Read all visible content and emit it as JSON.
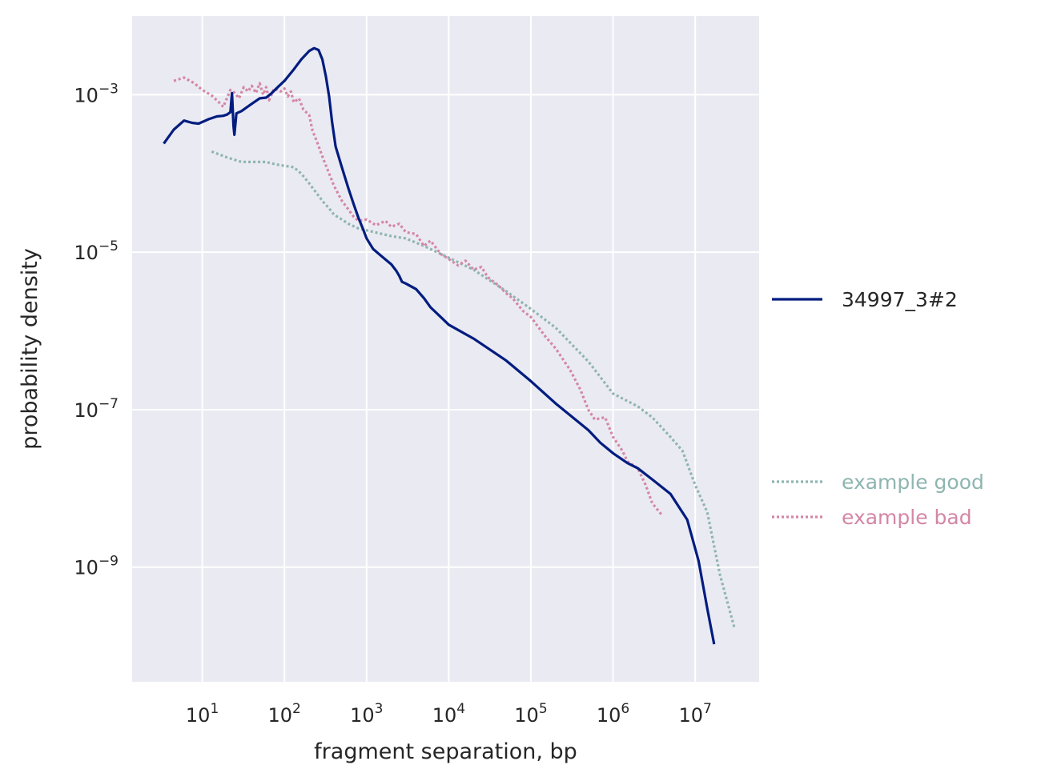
{
  "chart_data": {
    "type": "line",
    "title": "",
    "xlabel": "fragment separation, bp",
    "ylabel": "probability density",
    "xscale": "log",
    "yscale": "log",
    "xlim": [
      1.4,
      60000000
    ],
    "ylim": [
      3.5e-11,
      0.01
    ],
    "grid": true,
    "legend": "right, outside plot",
    "x_ticks": [
      {
        "base": "10",
        "exp": "1",
        "value": 10
      },
      {
        "base": "10",
        "exp": "2",
        "value": 100
      },
      {
        "base": "10",
        "exp": "3",
        "value": 1000
      },
      {
        "base": "10",
        "exp": "4",
        "value": 10000
      },
      {
        "base": "10",
        "exp": "5",
        "value": 100000
      },
      {
        "base": "10",
        "exp": "6",
        "value": 1000000
      },
      {
        "base": "10",
        "exp": "7",
        "value": 10000000
      }
    ],
    "y_ticks": [
      {
        "base": "10",
        "exp": "−3",
        "value": 0.001
      },
      {
        "base": "10",
        "exp": "−5",
        "value": 1e-05
      },
      {
        "base": "10",
        "exp": "−7",
        "value": 1e-07
      },
      {
        "base": "10",
        "exp": "−9",
        "value": 1e-09
      }
    ],
    "colors": {
      "background": "#eaeaf2",
      "grid": "#ffffff",
      "series_main": "#001c7f",
      "series_good": "#8fb5b0",
      "series_bad": "#d486a6"
    },
    "series": [
      {
        "name": "34997_3#2",
        "style": "solid",
        "color": "#001c7f",
        "points": [
          [
            3.4,
            0.00024
          ],
          [
            4.5,
            0.00036
          ],
          [
            6.0,
            0.00047
          ],
          [
            7.5,
            0.00044
          ],
          [
            9.0,
            0.00043
          ],
          [
            12,
            0.00049
          ],
          [
            15,
            0.00053
          ],
          [
            18,
            0.00054
          ],
          [
            20,
            0.00056
          ],
          [
            22,
            0.0006
          ],
          [
            23,
            0.00105
          ],
          [
            24,
            0.0004
          ],
          [
            24.6,
            0.00031
          ],
          [
            26,
            0.00058
          ],
          [
            30,
            0.00062
          ],
          [
            38,
            0.00074
          ],
          [
            50,
            0.0009
          ],
          [
            60,
            0.00092
          ],
          [
            70,
            0.00105
          ],
          [
            85,
            0.00128
          ],
          [
            100,
            0.0015
          ],
          [
            130,
            0.0021
          ],
          [
            160,
            0.0028
          ],
          [
            200,
            0.0036
          ],
          [
            230,
            0.0039
          ],
          [
            260,
            0.0037
          ],
          [
            290,
            0.0028
          ],
          [
            320,
            0.0017
          ],
          [
            350,
            0.00095
          ],
          [
            380,
            0.00045
          ],
          [
            420,
            0.00022
          ],
          [
            500,
            0.00012
          ],
          [
            600,
            6.5e-05
          ],
          [
            700,
            4e-05
          ],
          [
            800,
            2.7e-05
          ],
          [
            900,
            2e-05
          ],
          [
            1000,
            1.5e-05
          ],
          [
            1200,
            1.1e-05
          ],
          [
            1500,
            9e-06
          ],
          [
            2000,
            7e-06
          ],
          [
            2300,
            5.8e-06
          ],
          [
            2500,
            5e-06
          ],
          [
            2700,
            4.2e-06
          ],
          [
            3000,
            4e-06
          ],
          [
            4000,
            3.4e-06
          ],
          [
            5000,
            2.6e-06
          ],
          [
            6000,
            2e-06
          ],
          [
            8000,
            1.5e-06
          ],
          [
            10000,
            1.2e-06
          ],
          [
            20000,
            8e-07
          ],
          [
            50000,
            4.2e-07
          ],
          [
            100000,
            2.3e-07
          ],
          [
            200000,
            1.2e-07
          ],
          [
            500000,
            5.5e-08
          ],
          [
            700000,
            3.8e-08
          ],
          [
            1000000,
            2.8e-08
          ],
          [
            1500000,
            2.1e-08
          ],
          [
            2000000,
            1.8e-08
          ],
          [
            3000000,
            1.3e-08
          ],
          [
            5000000,
            8.5e-09
          ],
          [
            8000000,
            4e-09
          ],
          [
            11000000,
            1.2e-09
          ],
          [
            14000000,
            3e-10
          ],
          [
            17000000,
            1.05e-10
          ]
        ]
      },
      {
        "name": "example good",
        "style": "dotted",
        "color": "#8fb5b0",
        "points": [
          [
            13,
            0.00019
          ],
          [
            20,
            0.00016
          ],
          [
            30,
            0.00014
          ],
          [
            45,
            0.00014
          ],
          [
            60,
            0.00014
          ],
          [
            80,
            0.00013
          ],
          [
            100,
            0.000125
          ],
          [
            130,
            0.00012
          ],
          [
            160,
            0.0001
          ],
          [
            200,
            7.5e-05
          ],
          [
            250,
            5.5e-05
          ],
          [
            300,
            4.3e-05
          ],
          [
            350,
            3.6e-05
          ],
          [
            400,
            3e-05
          ],
          [
            500,
            2.6e-05
          ],
          [
            600,
            2.3e-05
          ],
          [
            800,
            2e-05
          ],
          [
            1000,
            1.9e-05
          ],
          [
            2000,
            1.6e-05
          ],
          [
            3000,
            1.5e-05
          ],
          [
            5000,
            1.2e-05
          ],
          [
            10000,
            8.5e-06
          ],
          [
            20000,
            6e-06
          ],
          [
            50000,
            3.2e-06
          ],
          [
            100000,
            1.9e-06
          ],
          [
            200000,
            1.1e-06
          ],
          [
            500000,
            4.1e-07
          ],
          [
            1000000,
            1.6e-07
          ],
          [
            2000000,
            1.1e-07
          ],
          [
            3000000,
            8e-08
          ],
          [
            5000000,
            4.5e-08
          ],
          [
            7000000,
            3e-08
          ],
          [
            10000000,
            1.1e-08
          ],
          [
            14000000,
            5e-09
          ],
          [
            20000000,
            8e-10
          ],
          [
            30000000,
            1.7e-10
          ]
        ]
      },
      {
        "name": "example bad",
        "style": "dotted",
        "color": "#d486a6",
        "points": [
          [
            4.5,
            0.0015
          ],
          [
            6,
            0.00165
          ],
          [
            8,
            0.0014
          ],
          [
            10,
            0.00115
          ],
          [
            13,
            0.00098
          ],
          [
            16,
            0.0008
          ],
          [
            18,
            0.0007
          ],
          [
            22,
            0.00115
          ],
          [
            25,
            0.00105
          ],
          [
            28,
            0.0009
          ],
          [
            32,
            0.00125
          ],
          [
            36,
            0.0011
          ],
          [
            40,
            0.0013
          ],
          [
            45,
            0.00105
          ],
          [
            50,
            0.0014
          ],
          [
            55,
            0.001
          ],
          [
            60,
            0.00125
          ],
          [
            65,
            0.00085
          ],
          [
            75,
            0.0012
          ],
          [
            90,
            0.0011
          ],
          [
            100,
            0.0012
          ],
          [
            110,
            0.00095
          ],
          [
            120,
            0.0011
          ],
          [
            130,
            0.0008
          ],
          [
            150,
            0.0009
          ],
          [
            170,
            0.00065
          ],
          [
            200,
            0.00055
          ],
          [
            220,
            0.00035
          ],
          [
            250,
            0.00025
          ],
          [
            300,
            0.00015
          ],
          [
            350,
            0.0001
          ],
          [
            400,
            7e-05
          ],
          [
            500,
            4.5e-05
          ],
          [
            600,
            3.5e-05
          ],
          [
            700,
            2.8e-05
          ],
          [
            800,
            2.5e-05
          ],
          [
            1000,
            2.6e-05
          ],
          [
            1300,
            2.2e-05
          ],
          [
            1700,
            2.5e-05
          ],
          [
            2000,
            2.1e-05
          ],
          [
            2500,
            2.3e-05
          ],
          [
            3000,
            1.8e-05
          ],
          [
            4000,
            1.7e-05
          ],
          [
            5000,
            1.2e-05
          ],
          [
            6000,
            1.4e-05
          ],
          [
            8000,
            9.5e-06
          ],
          [
            10000,
            8.2e-06
          ],
          [
            13000,
            6.8e-06
          ],
          [
            16000,
            7.8e-06
          ],
          [
            20000,
            6e-06
          ],
          [
            25000,
            6.5e-06
          ],
          [
            30000,
            4.8e-06
          ],
          [
            40000,
            3.8e-06
          ],
          [
            50000,
            3e-06
          ],
          [
            60000,
            2.6e-06
          ],
          [
            80000,
            1.8e-06
          ],
          [
            100000,
            1.5e-06
          ],
          [
            150000,
            8.5e-07
          ],
          [
            200000,
            6e-07
          ],
          [
            300000,
            3.2e-07
          ],
          [
            400000,
            1.8e-07
          ],
          [
            500000,
            1e-07
          ],
          [
            600000,
            7.5e-08
          ],
          [
            800000,
            8e-08
          ],
          [
            1000000,
            4.5e-08
          ],
          [
            1300000,
            3e-08
          ],
          [
            1500000,
            2.2e-08
          ],
          [
            2000000,
            1.8e-08
          ],
          [
            2500000,
            1.1e-08
          ],
          [
            3000000,
            6.5e-09
          ],
          [
            4000000,
            4.5e-09
          ]
        ]
      }
    ]
  }
}
